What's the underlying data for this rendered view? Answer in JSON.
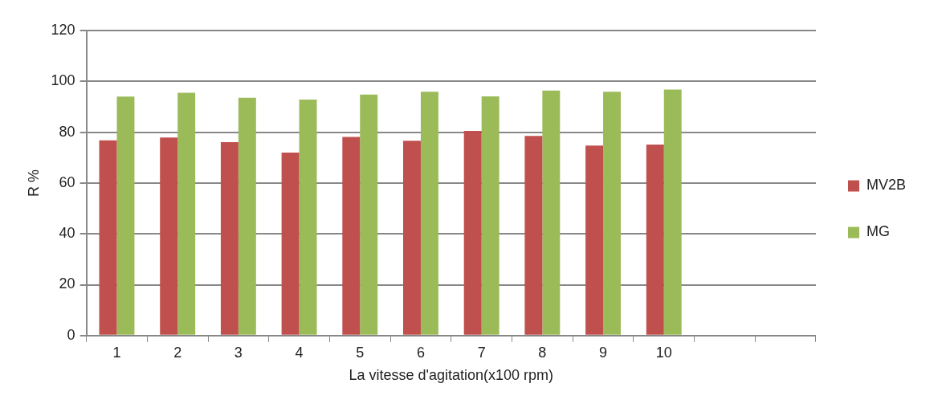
{
  "chart_data": {
    "type": "bar",
    "xlabel": "La vitesse d'agitation(x100 rpm)",
    "ylabel": "R %",
    "categories": [
      "1",
      "2",
      "3",
      "4",
      "5",
      "6",
      "7",
      "8",
      "9",
      "10",
      null,
      null
    ],
    "series": [
      {
        "name": "MV2B",
        "color": "#c0504d",
        "values": [
          76.8,
          77.9,
          76.1,
          72,
          78.1,
          76.6,
          80.5,
          78.5,
          74.7,
          75.1,
          null,
          null
        ]
      },
      {
        "name": "MG",
        "color": "#9bbb59",
        "values": [
          94,
          95.5,
          93.5,
          92.8,
          94.8,
          95.9,
          94.1,
          96.4,
          95.9,
          96.8,
          null,
          null
        ]
      }
    ],
    "ylim": [
      0,
      120
    ],
    "yticks": [
      0,
      20,
      40,
      60,
      80,
      100,
      120
    ],
    "grid": "y",
    "legend": "right"
  }
}
